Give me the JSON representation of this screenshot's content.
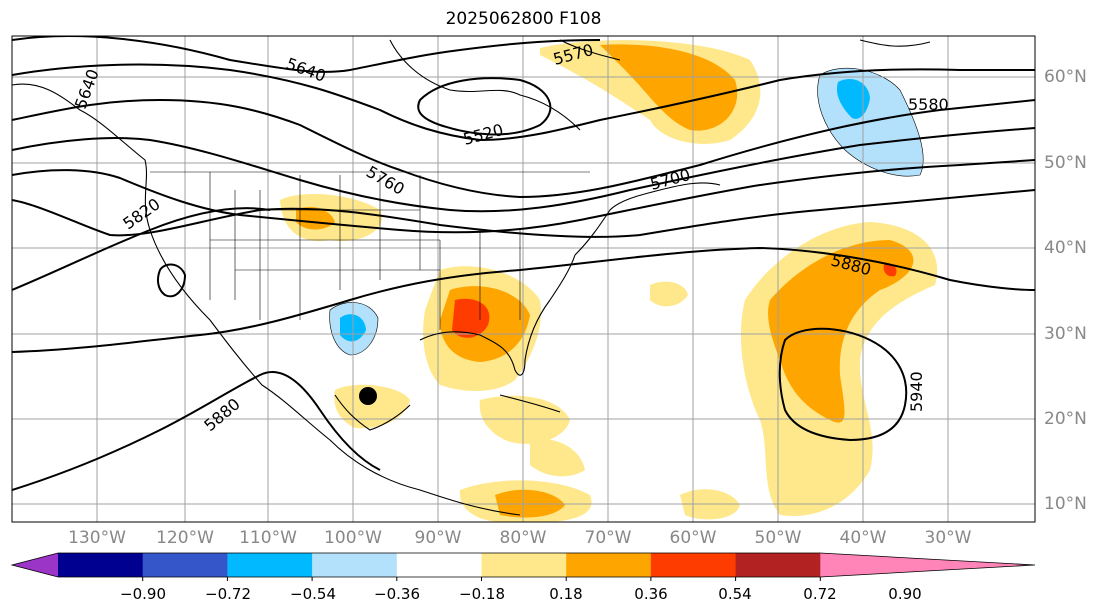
{
  "title": "2025062800 F108",
  "lon_labels": [
    "130°W",
    "120°W",
    "110°W",
    "100°W",
    "90°W",
    "80°W",
    "70°W",
    "60°W",
    "50°W",
    "40°W",
    "30°W"
  ],
  "lat_labels": [
    "60°N",
    "50°N",
    "40°N",
    "30°N",
    "20°N",
    "10°N"
  ],
  "contour_labels": [
    "5640",
    "5640",
    "5570",
    "5580",
    "5520",
    "5760",
    "5700",
    "5820",
    "5880",
    "5880",
    "5940"
  ],
  "colorbar": {
    "ticks": [
      "−0.90",
      "−0.72",
      "−0.54",
      "−0.36",
      "−0.18",
      "0.18",
      "0.36",
      "0.54",
      "0.72",
      "0.90"
    ],
    "colors": [
      "#9a35c8",
      "#000090",
      "#3556c8",
      "#00b9ff",
      "#b3e0fb",
      "#ffffff",
      "#fee88b",
      "#ffa500",
      "#ff3c00",
      "#b22222",
      "#ff85b8"
    ]
  },
  "marker": {
    "lon": "97°W",
    "lat": "23°N"
  }
}
